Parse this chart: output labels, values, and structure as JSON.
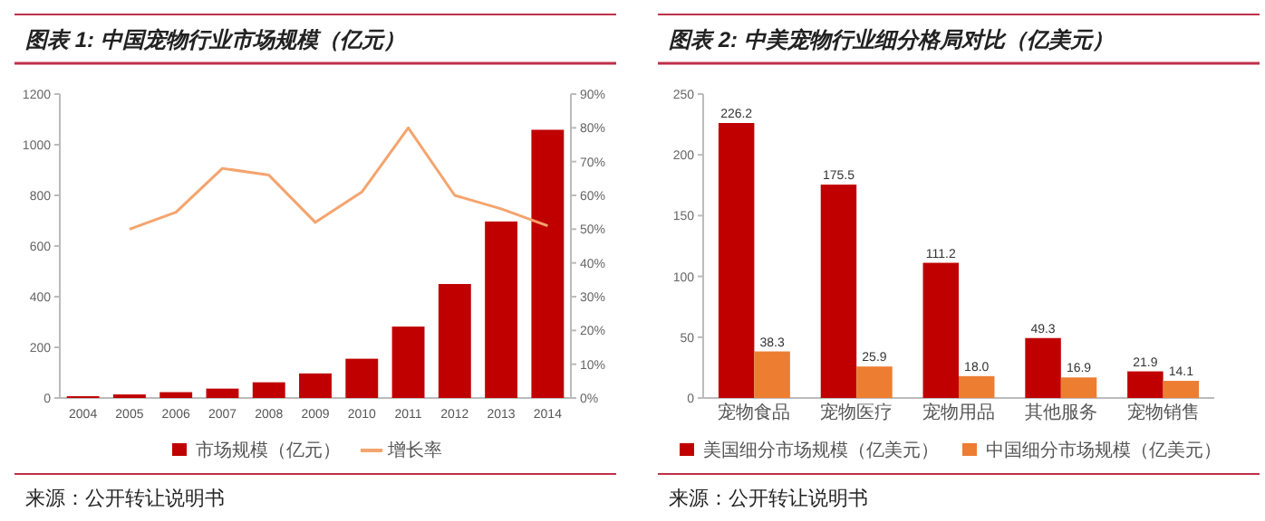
{
  "chart_data": [
    {
      "type": "bar",
      "title": "图表 1:  中国宠物行业市场规模（亿元）",
      "annotations": [
        "来源：公开转让说明书"
      ],
      "categories": [
        "2004",
        "2005",
        "2006",
        "2007",
        "2008",
        "2009",
        "2010",
        "2011",
        "2012",
        "2013",
        "2014"
      ],
      "series": [
        {
          "name": "市场规模（亿元）",
          "color": "#c00000",
          "values": [
            7,
            14,
            23,
            37,
            62,
            97,
            155,
            282,
            450,
            697,
            1059
          ]
        },
        {
          "name": "增长率",
          "type": "line",
          "axis": "y2",
          "color": "#f4a46e",
          "values": [
            null,
            50,
            55,
            68,
            66,
            52,
            61,
            80,
            60,
            56,
            51
          ]
        }
      ],
      "ylim": [
        0,
        1200
      ],
      "yticks": [
        0,
        200,
        400,
        600,
        800,
        1000,
        1200
      ],
      "y2lim": [
        0,
        90
      ],
      "y2ticks": [
        {
          "value": 0,
          "label": "0%"
        },
        {
          "value": 10,
          "label": "10%"
        },
        {
          "value": 20,
          "label": "20%"
        },
        {
          "value": 30,
          "label": "30%"
        },
        {
          "value": 40,
          "label": "40%"
        },
        {
          "value": 50,
          "label": "50%"
        },
        {
          "value": 60,
          "label": "60%"
        },
        {
          "value": 70,
          "label": "70%"
        },
        {
          "value": 80,
          "label": "80%"
        },
        {
          "value": 90,
          "label": "90%"
        }
      ],
      "legend": "bottom",
      "marker": "none",
      "line_style": "solid",
      "grid": false
    },
    {
      "type": "bar",
      "title": "图表 2:  中美宠物行业细分格局对比（亿美元）",
      "annotations": [
        "来源：公开转让说明书"
      ],
      "categories": [
        "宠物食品",
        "宠物医疗",
        "宠物用品",
        "其他服务",
        "宠物销售"
      ],
      "series": [
        {
          "name": "美国细分市场规模（亿美元）",
          "color": "#c00000",
          "values": [
            226.2,
            175.5,
            111.2,
            49.3,
            21.9
          ],
          "value_labels": [
            "226.2",
            "175.5",
            "111.2",
            "49.3",
            "21.9"
          ]
        },
        {
          "name": "中国细分市场规模（亿美元）",
          "color": "#ed7d31",
          "values": [
            38.3,
            25.9,
            18.0,
            16.9,
            14.1
          ],
          "value_labels": [
            "38.3",
            "25.9",
            "18.0",
            "16.9",
            "14.1"
          ]
        }
      ],
      "ylim": [
        0,
        250
      ],
      "yticks": [
        0,
        50,
        100,
        150,
        200,
        250
      ],
      "legend": "bottom",
      "grid": false
    }
  ]
}
